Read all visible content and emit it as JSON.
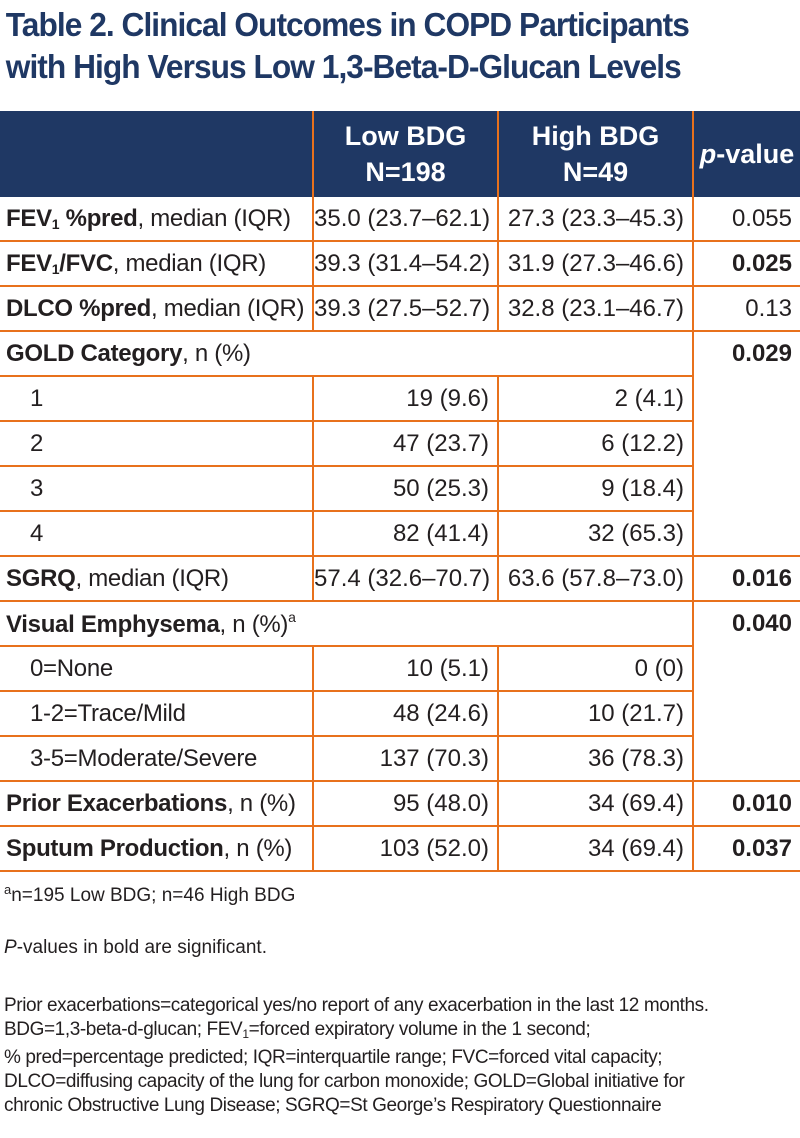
{
  "title": {
    "line1": "Table 2. Clinical Outcomes in COPD Participants",
    "line2": "with High Versus Low 1,3-Beta-D-Glucan Levels"
  },
  "header": {
    "low_line1": "Low BDG",
    "low_line2": "N=198",
    "high_line1": "High BDG",
    "high_line2": "N=49",
    "pvalue_italic": "p",
    "pvalue_rest": "-value"
  },
  "rows": {
    "fev1": {
      "label_bold_a": "FEV",
      "label_sub": "1",
      "label_bold_b": " %pred",
      "label_rest": ", median (IQR)",
      "low": "35.0 (23.7–62.1)",
      "high": "27.3 (23.3–45.3)",
      "p": "0.055"
    },
    "fev1fvc": {
      "label_bold_a": "FEV",
      "label_sub": "1",
      "label_bold_b": "/FVC",
      "label_rest": ", median (IQR)",
      "low": "39.3 (31.4–54.2)",
      "high": "31.9 (27.3–46.6)",
      "p": "0.025"
    },
    "dlco": {
      "label_bold": "DLCO %pred",
      "label_rest": ", median (IQR)",
      "low": "39.3 (27.5–52.7)",
      "high": "32.8 (23.1–46.7)",
      "p": "0.13"
    },
    "gold": {
      "label_bold": "GOLD Category",
      "label_rest": ", n (%)",
      "p": "0.029"
    },
    "gold_items": [
      {
        "label": "1",
        "low": "19 (9.6)",
        "high": "2 (4.1)"
      },
      {
        "label": "2",
        "low": "47 (23.7)",
        "high": "6 (12.2)"
      },
      {
        "label": "3",
        "low": "50 (25.3)",
        "high": "9 (18.4)"
      },
      {
        "label": "4",
        "low": "82 (41.4)",
        "high": "32 (65.3)"
      }
    ],
    "sgrq": {
      "label_bold": "SGRQ",
      "label_rest": ", median (IQR)",
      "low": "57.4 (32.6–70.7)",
      "high": "63.6 (57.8–73.0)",
      "p": "0.016"
    },
    "emph": {
      "label_bold": "Visual Emphysema",
      "label_rest": ", n (%)",
      "label_sup": "a",
      "p": "0.040"
    },
    "emph_items": [
      {
        "label": "0=None",
        "low": "10 (5.1)",
        "high": "0 (0)"
      },
      {
        "label": "1-2=Trace/Mild",
        "low": "48 (24.6)",
        "high": "10 (21.7)"
      },
      {
        "label": "3-5=Moderate/Severe",
        "low": "137 (70.3)",
        "high": "36 (78.3)"
      }
    ],
    "prior": {
      "label_bold": "Prior Exacerbations",
      "label_rest": ", n (%)",
      "low": "95 (48.0)",
      "high": "34 (69.4)",
      "p": "0.010"
    },
    "sputum": {
      "label_bold": "Sputum Production",
      "label_rest": ", n (%)",
      "low": "103 (52.0)",
      "high": "34 (69.4)",
      "p": "0.037"
    }
  },
  "footnotes": {
    "a_sup": "a",
    "a_text": "n=195 Low BDG; n=46 High BDG",
    "p_italic": "P",
    "p_rest": "-values in bold are significant.",
    "abbr_line1": "Prior exacerbations=categorical yes/no report of any exacerbation in the last 12 months.",
    "abbr_line2a": "BDG=1,3-beta-d-glucan; FEV",
    "abbr_line2_sub": "1",
    "abbr_line2b": "=forced expiratory volume in the 1 second;",
    "abbr_line3": "% pred=percentage predicted; IQR=interquartile range; FVC=forced vital capacity;",
    "abbr_line4": "DLCO=diffusing capacity of the lung for carbon monoxide; GOLD=Global initiative for",
    "abbr_line5": "chronic Obstructive Lung Disease; SGRQ=St George’s Respiratory Questionnaire"
  }
}
